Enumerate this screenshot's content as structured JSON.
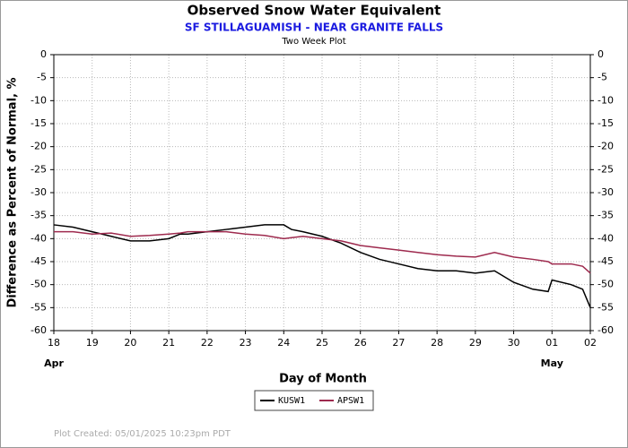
{
  "chart_data": {
    "type": "line",
    "title": "Observed Snow Water Equivalent",
    "subtitle": "SF STILLAGUAMISH - NEAR GRANITE FALLS",
    "plot_label": "Two Week Plot",
    "y_label": "Difference as Percent of Normal, %",
    "x_label": "Day of Month",
    "footer": "Plot Created: 05/01/2025 10:23pm PDT",
    "x": [
      0,
      0.5,
      1,
      1.5,
      2,
      2.5,
      3,
      3.3,
      3.5,
      4,
      4.5,
      5,
      5.5,
      6,
      6.2,
      6.5,
      7,
      7.5,
      8,
      8.5,
      9,
      9.5,
      10,
      10.5,
      11,
      11.5,
      12,
      12.5,
      12.9,
      13,
      13.5,
      13.8,
      14
    ],
    "series": [
      {
        "name": "KUSW1",
        "color": "#000000",
        "values": [
          -37,
          -37.5,
          -38.5,
          -39.5,
          -40.5,
          -40.5,
          -40,
          -39,
          -39,
          -38.5,
          -38,
          -37.5,
          -37,
          -37,
          -38,
          -38.5,
          -39.5,
          -41,
          -43,
          -44.5,
          -45.5,
          -46.5,
          -47,
          -47,
          -47.5,
          -47,
          -49.5,
          -51,
          -51.5,
          -49,
          -50,
          -51,
          -55
        ]
      },
      {
        "name": "APSW1",
        "color": "#9e2a4e",
        "values": [
          -38.5,
          -38.5,
          -39,
          -38.8,
          -39.5,
          -39.3,
          -39,
          -38.8,
          -38.5,
          -38.5,
          -38.5,
          -39,
          -39.3,
          -40,
          -39.8,
          -39.5,
          -40,
          -40.5,
          -41.5,
          -42,
          -42.5,
          -43,
          -43.5,
          -43.8,
          -44,
          -43,
          -44,
          -44.5,
          -45,
          -45.5,
          -45.5,
          -46,
          -47.5
        ]
      }
    ],
    "xlim": [
      0,
      14
    ],
    "xticks": [
      {
        "value": 0,
        "label": "18"
      },
      {
        "value": 1,
        "label": "19"
      },
      {
        "value": 2,
        "label": "20"
      },
      {
        "value": 3,
        "label": "21"
      },
      {
        "value": 4,
        "label": "22"
      },
      {
        "value": 5,
        "label": "23"
      },
      {
        "value": 6,
        "label": "24"
      },
      {
        "value": 7,
        "label": "25"
      },
      {
        "value": 8,
        "label": "26"
      },
      {
        "value": 9,
        "label": "27"
      },
      {
        "value": 10,
        "label": "28"
      },
      {
        "value": 11,
        "label": "29"
      },
      {
        "value": 12,
        "label": "30"
      },
      {
        "value": 13,
        "label": "01"
      },
      {
        "value": 14,
        "label": "02"
      }
    ],
    "month_labels": [
      {
        "x": 0,
        "label": "Apr"
      },
      {
        "x": 13,
        "label": "May"
      }
    ],
    "ylim": [
      -60,
      0
    ],
    "yticks": [
      0,
      -5,
      -10,
      -15,
      -20,
      -25,
      -30,
      -35,
      -40,
      -45,
      -50,
      -55,
      -60
    ],
    "grid": true
  }
}
